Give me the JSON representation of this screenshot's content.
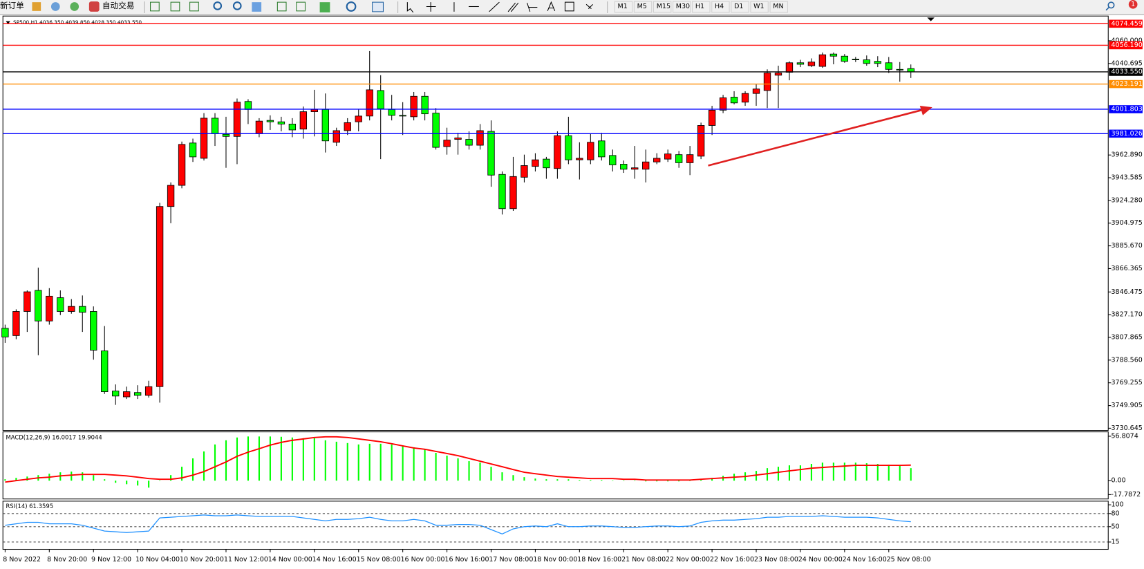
{
  "toolbar": {
    "new_order": "新订单",
    "auto_trading": "自动交易",
    "timeframes": [
      "M1",
      "M5",
      "M15",
      "M30",
      "H1",
      "H4",
      "D1",
      "W1",
      "MN"
    ],
    "notification": "1"
  },
  "chart_data": [
    {
      "type": "candlestick",
      "title": "SP500,H1  4036.350 4039.850 4028.350 4033.550",
      "categories": [
        "8 Nov 2022",
        null,
        null,
        null,
        "8 Nov 20:00",
        null,
        null,
        null,
        "9 Nov 12:00",
        null,
        null,
        null,
        "10 Nov 04:00",
        null,
        null,
        null,
        "10 Nov 20:00",
        null,
        null,
        null,
        "11 Nov 12:00",
        null,
        null,
        null,
        "14 Nov 00:00",
        null,
        null,
        null,
        "14 Nov 16:00",
        null,
        null,
        null,
        "15 Nov 08:00",
        null,
        null,
        null,
        "16 Nov 00:00",
        null,
        null,
        null,
        "16 Nov 16:00",
        null,
        null,
        null,
        "17 Nov 08:00",
        null,
        null,
        null,
        "18 Nov 00:00",
        null,
        null,
        null,
        "18 Nov 16:00",
        null,
        null,
        null,
        "21 Nov 08:00",
        null,
        null,
        null,
        "22 Nov 00:00",
        null,
        null,
        null,
        "22 Nov 16:00",
        null,
        null,
        null,
        "23 Nov 08:00",
        null,
        null,
        null,
        "24 Nov 00:00",
        null,
        null,
        null,
        "24 Nov 16:00",
        null,
        null,
        null,
        "25 Nov 08:00",
        null,
        null
      ],
      "open": [
        3815.6,
        3809.4,
        3829.9,
        3847.8,
        3821.8,
        3841.6,
        3829.9,
        3834.2,
        3829.9,
        3796.4,
        3762.3,
        3757.3,
        3761.0,
        3758.6,
        3766.0,
        3919.1,
        3937.1,
        3973.1,
        3960.1,
        3994.2,
        3980.5,
        3978.7,
        4008.4,
        3981.1,
        3992.3,
        3991.1,
        3989.2,
        3984.9,
        3999.7,
        4001.6,
        3973.7,
        3983.6,
        3991.1,
        3996.0,
        4017.7,
        4001.6,
        3996.6,
        3995.4,
        4012.8,
        3998.5,
        3970.0,
        3976.2,
        3976.2,
        3971.2,
        3983.0,
        3946.4,
        3917.3,
        3944.0,
        3953.2,
        3959.4,
        3951.4,
        3979.3,
        3958.8,
        3958.8,
        3974.9,
        3962.5,
        3955.1,
        3950.8,
        3950.8,
        3957.0,
        3959.4,
        3963.2,
        3956.3,
        3961.9,
        3988.0,
        4001.0,
        4012.1,
        4007.8,
        4015.2,
        4017.7,
        4030.7,
        4033.2,
        4041.3,
        4038.8,
        4038.2,
        4048.7,
        4046.9,
        4044.4,
        4043.8,
        4042.5,
        4041.3,
        4035.7,
        4036.35
      ],
      "high": [
        3818.7,
        3831.7,
        3847.8,
        3867.1,
        3849.7,
        3847.8,
        3840.4,
        3843.5,
        3834.2,
        3817.5,
        3767.9,
        3766.0,
        3767.2,
        3771.0,
        3922.2,
        3939.6,
        3974.3,
        3976.8,
        3998.5,
        3998.5,
        3995.4,
        4010.9,
        4010.3,
        3994.2,
        3996.6,
        3995.4,
        3994.2,
        4004.1,
        4018.3,
        4015.2,
        3986.1,
        3994.2,
        4001.6,
        4051.2,
        4030.7,
        4014.0,
        4007.8,
        4016.5,
        4016.5,
        4002.8,
        3986.1,
        3981.8,
        3983.0,
        3989.2,
        3992.3,
        3948.9,
        3961.3,
        3963.2,
        3964.4,
        3961.3,
        3983.0,
        3995.4,
        3973.7,
        3981.1,
        3981.8,
        3967.5,
        3958.2,
        3970.6,
        3967.5,
        3964.4,
        3967.5,
        3966.3,
        3970.6,
        3990.4,
        4004.7,
        4014.0,
        4017.1,
        4017.1,
        4023.3,
        4035.7,
        4038.8,
        4042.5,
        4043.8,
        4045.0,
        4050.0,
        4050.0,
        4048.7,
        4046.2,
        4047.5,
        4046.9,
        4046.2,
        4041.9,
        4039.85
      ],
      "low": [
        3803.2,
        3806.3,
        3812.5,
        3792.7,
        3818.7,
        3826.8,
        3828.0,
        3812.5,
        3788.9,
        3759.8,
        3750.5,
        3755.5,
        3755.5,
        3756.7,
        3752.4,
        3904.9,
        3934.6,
        3957.0,
        3958.2,
        3970.6,
        3952.0,
        3955.1,
        3989.2,
        3978.0,
        3984.2,
        3983.0,
        3978.0,
        3976.8,
        3978.7,
        3965.0,
        3970.6,
        3979.9,
        3983.0,
        3992.3,
        3959.4,
        3992.3,
        3979.9,
        3992.3,
        3992.3,
        3967.5,
        3963.2,
        3963.2,
        3967.5,
        3967.5,
        3935.9,
        3912.3,
        3915.4,
        3939.6,
        3948.9,
        3942.7,
        3942.7,
        3955.1,
        3942.1,
        3955.1,
        3958.2,
        3948.9,
        3947.7,
        3942.7,
        3939.6,
        3955.1,
        3957.0,
        3952.0,
        3945.8,
        3959.4,
        3979.9,
        3998.5,
        4005.9,
        4004.7,
        4004.7,
        4002.8,
        4002.8,
        4026.4,
        4037.6,
        4037.6,
        4037.0,
        4040.0,
        4041.3,
        4041.9,
        4038.8,
        4037.6,
        4032.6,
        4025.2,
        4028.35
      ],
      "close": [
        3808.2,
        3829.9,
        3846.6,
        3821.8,
        3842.9,
        3829.9,
        3834.2,
        3829.2,
        3797.0,
        3761.7,
        3758.0,
        3761.7,
        3758.6,
        3766.0,
        3919.1,
        3937.1,
        3971.9,
        3961.3,
        3994.2,
        3981.1,
        3978.7,
        4007.8,
        4001.6,
        3991.7,
        3991.1,
        3989.2,
        3984.2,
        3999.7,
        4001.6,
        3974.9,
        3983.6,
        3990.4,
        3996.0,
        4018.3,
        4002.2,
        3996.6,
        3996.0,
        4012.8,
        3997.9,
        3969.4,
        3975.6,
        3977.4,
        3971.2,
        3983.6,
        3945.8,
        3917.3,
        3944.6,
        3953.9,
        3958.8,
        3952.0,
        3979.3,
        3958.8,
        3960.1,
        3973.7,
        3961.3,
        3954.5,
        3950.8,
        3952.0,
        3957.0,
        3960.1,
        3963.8,
        3956.3,
        3963.2,
        3988.0,
        4001.0,
        4011.5,
        4007.2,
        4015.2,
        4019.0,
        4032.6,
        4032.6,
        4041.3,
        4040.0,
        4041.9,
        4048.1,
        4046.9,
        4042.5,
        4043.8,
        4040.7,
        4040.7,
        4035.7,
        4035.1,
        4033.55
      ],
      "up_color": "#ff0000",
      "down_color": "#00ff00",
      "ylim": [
        3728.8,
        4081.0
      ],
      "yticks": [
        {
          "value": 4060,
          "label": "4060.000"
        },
        4040.695,
        {
          "value": 3962.89,
          "label": "3962.890"
        },
        3943.585,
        {
          "value": 3924.28,
          "label": "3924.280"
        },
        3904.975,
        {
          "value": 3885.67,
          "label": "3885.670"
        },
        3866.365,
        3846.475,
        {
          "value": 3827.17,
          "label": "3827.170"
        },
        3807.865,
        {
          "value": 3788.56,
          "label": "3788.560"
        },
        3769.255,
        3749.905,
        3730.645
      ],
      "levels": [
        {
          "value": 4074.459,
          "color": "#ff0000"
        },
        {
          "value": 4056.19,
          "label": "4056.190",
          "color": "#ff0000"
        },
        {
          "value": 4033.55,
          "label": "4033.550",
          "color": "#000000"
        },
        {
          "value": 4023.191,
          "color": "#ff8c00"
        },
        {
          "value": 4001.803,
          "color": "#0000ff"
        },
        {
          "value": 3981.026,
          "color": "#0000ff"
        }
      ]
    },
    {
      "type": "macd",
      "title": "MACD(12,26,9) 16.0017 19.9044",
      "histogram": {
        "color": "#00ff00",
        "values": [
          1.8,
          3.6,
          5.3,
          7.1,
          8.9,
          10.7,
          11.6,
          10.7,
          7.1,
          1.8,
          -2.7,
          -4.5,
          -6.2,
          -8.9,
          0,
          7.1,
          17.8,
          28.5,
          37.4,
          46.3,
          51.6,
          55.2,
          56.5,
          56.5,
          56.5,
          56.1,
          55.2,
          54.3,
          54.3,
          51.6,
          49.8,
          48.1,
          46.3,
          47.2,
          47.2,
          46.3,
          44.5,
          42.7,
          40.1,
          35.6,
          32.0,
          28.5,
          24.9,
          23.1,
          17.8,
          10.7,
          7.1,
          4.5,
          2.7,
          1.8,
          1.8,
          1.8,
          0.9,
          0.9,
          0.9,
          0,
          0,
          0,
          -0.9,
          -0.9,
          -0.9,
          -0.9,
          0,
          1.8,
          3.6,
          6.2,
          8.9,
          10.7,
          12.5,
          16.0,
          17.8,
          19.6,
          19.6,
          21.4,
          23.1,
          23.1,
          23.1,
          23.1,
          22.3,
          21.4,
          20.5,
          19.6,
          16.0017
        ]
      },
      "signal": {
        "color": "#ff0000",
        "values": [
          -1.8,
          0,
          1.8,
          3.6,
          4.5,
          6.2,
          7.1,
          8.0,
          8.0,
          8.0,
          7.1,
          6.2,
          4.5,
          2.7,
          1.8,
          1.8,
          3.6,
          7.1,
          11.6,
          17.8,
          24.0,
          31.2,
          36.5,
          40.9,
          45.4,
          49.0,
          51.6,
          53.4,
          55.2,
          56.1,
          56.1,
          55.2,
          53.4,
          51.6,
          49.8,
          47.2,
          44.5,
          41.8,
          40.1,
          37.4,
          34.7,
          32.0,
          28.5,
          24.9,
          21.4,
          17.8,
          14.2,
          10.7,
          8.9,
          7.1,
          5.3,
          4.5,
          3.6,
          2.7,
          2.7,
          2.7,
          1.8,
          1.8,
          0.9,
          0.9,
          0.9,
          0.9,
          0.9,
          1.8,
          2.7,
          3.6,
          4.5,
          5.3,
          7.1,
          8.9,
          10.7,
          12.5,
          14.2,
          16.0,
          16.9,
          17.8,
          18.7,
          19.6,
          19.6,
          19.6,
          19.6,
          19.6,
          19.9044
        ]
      },
      "ylim": [
        -17.7872,
        56.8074
      ],
      "yticks": [
        56.8074,
        {
          "value": 0,
          "label": "0.00"
        },
        -17.7872
      ]
    },
    {
      "type": "rsi",
      "title": "RSI(14) 61.3595",
      "color": "#1e90ff",
      "values": [
        53.3,
        56.7,
        60.0,
        60.0,
        56.7,
        56.7,
        56.7,
        53.3,
        46.7,
        40.0,
        38.3,
        36.7,
        38.3,
        40.0,
        70.0,
        71.7,
        73.3,
        75.0,
        76.7,
        75.0,
        75.0,
        76.7,
        75.0,
        73.3,
        73.3,
        73.3,
        73.3,
        70.0,
        66.7,
        63.3,
        66.7,
        66.7,
        68.3,
        71.7,
        66.7,
        63.3,
        63.3,
        66.7,
        63.3,
        53.3,
        53.3,
        55.0,
        55.0,
        53.3,
        43.3,
        33.3,
        45.0,
        50.0,
        51.7,
        50.0,
        56.7,
        50.0,
        50.0,
        51.7,
        51.7,
        50.0,
        48.3,
        48.3,
        50.0,
        51.7,
        51.7,
        50.0,
        51.7,
        60.0,
        63.3,
        65.0,
        65.0,
        66.7,
        68.3,
        71.7,
        71.7,
        73.3,
        73.3,
        73.3,
        75.0,
        73.3,
        71.7,
        71.7,
        71.7,
        70.0,
        66.7,
        63.3,
        61.3595
      ],
      "ylim": [
        0,
        100
      ],
      "yticks": [
        100,
        80,
        50,
        15
      ],
      "levels": [
        80,
        50,
        15
      ]
    }
  ]
}
